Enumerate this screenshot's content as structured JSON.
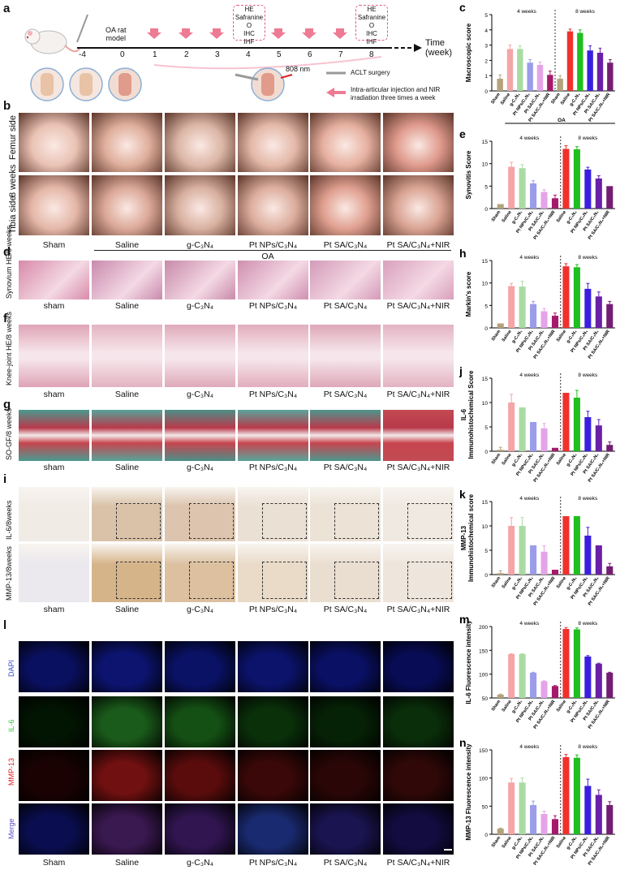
{
  "panel_a": {
    "letter": "a",
    "model_label": "OA rat\nmodel",
    "timeline_ticks": [
      "-4",
      "0",
      "1",
      "2",
      "3",
      "4",
      "5",
      "6",
      "7",
      "8"
    ],
    "time_label": "Time\n(week)",
    "assay_box_week4": [
      "HE",
      "Safranine O",
      "IHC",
      "IHF"
    ],
    "assay_box_week8": [
      "HE",
      "Safranine O",
      "IHC",
      "IHF"
    ],
    "laser_label": "808 nm",
    "legend_surgery": "ACLT surgery",
    "legend_injection": "Intra-articular injection and NIR\nirradiation three times a week"
  },
  "panel_b": {
    "letter": "b",
    "row_labels": [
      "Femur side",
      "Tibia side"
    ],
    "time_label": "8 weeks"
  },
  "group_labels": [
    "Sham",
    "Saline",
    "g-C₃N₄",
    "Pt NPs/C₃N₄",
    "Pt SA/C₃N₄",
    "Pt SA/C₃N₄+NIR"
  ],
  "group_labels_lower": [
    "sham",
    "Saline",
    "g-C₃N₄",
    "Pt NPs/C₃N₄",
    "Pt SA/C₃N₄",
    "Pt SA/C₃N₄+NIR"
  ],
  "oa_label": "OA",
  "panel_d": {
    "letter": "d",
    "row_label": "Synovium HE/8 weeks"
  },
  "panel_f": {
    "letter": "f",
    "row_label": "Knee-joint HE/8 weeks"
  },
  "panel_g": {
    "letter": "g",
    "row_label": "SO-GF/8 weeks"
  },
  "panel_i": {
    "letter": "i",
    "row_labels": [
      "IL-6/8weeks",
      "MMP-13/8weeks"
    ]
  },
  "panel_l": {
    "letter": "l",
    "row_labels": [
      "DAPI",
      "IL-6",
      "MMP-13",
      "Merge"
    ],
    "row_colors": [
      "#3a4fd0",
      "#3fbf3f",
      "#e02020",
      "#5a4fd0"
    ]
  },
  "tile_colors": {
    "femur": [
      "#e9c2b4",
      "#dfae9c",
      "#dcb6a6",
      "#e3b8a8",
      "#e6b0a0",
      "#df9a8c"
    ],
    "tibia": [
      "#e4b7a8",
      "#dba898",
      "#d8b0a0",
      "#dcae9e",
      "#e0a090",
      "#d9a393"
    ],
    "synovium": [
      "#d88aa8",
      "#c98aae",
      "#c88aa9",
      "#cf8fb0",
      "#d49ab8",
      "#d9a0bc"
    ],
    "knee": [
      "#dfa3b6",
      "#e3b3c1",
      "#dfa9ba",
      "#e2adbd",
      "#dea7b8",
      "#e3b3c2"
    ],
    "so": [
      "#4a9a90",
      "#57a39a",
      "#4c8f88",
      "#5aa59c",
      "#4e968e",
      "#c24a52"
    ],
    "il6": [
      "#f1ebe6",
      "#d9c2a8",
      "#dcc4ae",
      "#ebe0d4",
      "#ece2d6",
      "#f0e9e2"
    ],
    "mmp13": [
      "#ebe8ee",
      "#d6b48a",
      "#dcc0a0",
      "#e9dbc8",
      "#eaded0",
      "#eee6dc"
    ],
    "dapi": [
      "#0a1060",
      "#0c1470",
      "#0a1266",
      "#0b136a",
      "#0a1064",
      "#080c55"
    ],
    "il6f": [
      "#021402",
      "#1a5a1a",
      "#145014",
      "#0a300a",
      "#062206",
      "#0a2e0a"
    ],
    "mmp13f": [
      "#1a0202",
      "#701010",
      "#5a0c0c",
      "#3a0808",
      "#2a0606",
      "#300808"
    ],
    "merge": [
      "#0a0e50",
      "#3a1850",
      "#301550",
      "#1a2a70",
      "#1a1450",
      "#120c40"
    ]
  },
  "bar_colors": [
    "#b5a27c",
    "#f4a5a8",
    "#a9dca4",
    "#9b9cea",
    "#e4a4e8",
    "#a6196a",
    "#b5a27c",
    "#f0312e",
    "#1fbf1f",
    "#3a1fe0",
    "#6a1fa8",
    "#741e73"
  ],
  "charts": [
    {
      "letter": "c",
      "ylabel": "Macroscopic score",
      "ylim": [
        0,
        5
      ],
      "yticks": [
        0,
        1,
        2,
        3,
        4,
        5
      ],
      "week_labels": [
        "4 weeks",
        "8 weeks"
      ],
      "categories": [
        "Sham",
        "Saline",
        "g-C₃N₄",
        "Pt NPs/C₃N₄",
        "Pt SA/C₃N₄",
        "Pt SA/C₃N₄+NIR",
        "Sham",
        "Saline",
        "g-C₃N₄",
        "Pt NPs/C₃N₄",
        "Pt SA/C₃N₄",
        "Pt SA/C₃N₄+NIR"
      ],
      "values": [
        0.8,
        2.75,
        2.75,
        1.85,
        1.7,
        1.05,
        0.8,
        3.9,
        3.8,
        2.65,
        2.5,
        1.85
      ],
      "errors": [
        0.25,
        0.25,
        0.2,
        0.2,
        0.2,
        0.25,
        0.2,
        0.15,
        0.2,
        0.3,
        0.3,
        0.2
      ],
      "oa_label": "OA"
    },
    {
      "letter": "e",
      "ylabel": "Synovitis Score",
      "ylim": [
        0,
        15
      ],
      "yticks": [
        0,
        5,
        10,
        15
      ],
      "week_labels": [
        "4 weeks",
        "8 weeks"
      ],
      "categories": [
        "Sham",
        "Saline",
        "g-C₃N₄",
        "Pt NPs/C₃N₄",
        "Pt SA/C₃N₄",
        "Pt SA/C₃N₄+NIR",
        "Saline",
        "g-C₃N₄",
        "Pt NPs/C₃N₄",
        "Pt SA/C₃N₄",
        "Pt SA/C₃N₄+NIR"
      ],
      "values": [
        1,
        9.3,
        9,
        5.6,
        3.7,
        2.3,
        13.3,
        13.2,
        8.7,
        6.7,
        5
      ],
      "errors": [
        0,
        1,
        0.8,
        0.6,
        0.5,
        0.7,
        0.7,
        0.6,
        0.5,
        0.6,
        0
      ]
    },
    {
      "letter": "h",
      "ylabel": "Markin's score",
      "ylim": [
        0,
        15
      ],
      "yticks": [
        0,
        5,
        10,
        15
      ],
      "week_labels": [
        "4 weeks",
        "8 weeks"
      ],
      "categories": [
        "Sham",
        "Saline",
        "g-C₃N₄",
        "Pt NPs/C₃N₄",
        "Pt SA/C₃N₄",
        "Pt SA/C₃N₄+NIR",
        "Saline",
        "g-C₃N₄",
        "Pt NPs/C₃N₄",
        "Pt SA/C₃N₄",
        "Pt SA/C₃N₄+NIR"
      ],
      "values": [
        1,
        9.3,
        9.2,
        5.3,
        3.7,
        2.7,
        13.7,
        13.5,
        8.7,
        7,
        5.3
      ],
      "errors": [
        0,
        0.6,
        1.2,
        0.6,
        0.6,
        0.6,
        0.6,
        0.6,
        1.2,
        1.0,
        0.6
      ]
    },
    {
      "letter": "j",
      "ylabel": "IL-6\nImmunohistochemical Score",
      "ylim": [
        0,
        15
      ],
      "yticks": [
        0,
        5,
        10,
        15
      ],
      "week_labels": [
        "4 weeks",
        "8 weeks"
      ],
      "categories": [
        "Sham",
        "Saline",
        "g-C₃N₄",
        "Pt NPs/C₃N₄",
        "Pt SA/C₃N₄",
        "Pt SA/C₃N₄+NIR",
        "Saline",
        "g-C₃N₄",
        "Pt NPs/C₃N₄",
        "Pt SA/C₃N₄",
        "Pt SA/C₃N₄+NIR"
      ],
      "values": [
        0.3,
        10,
        9,
        6,
        4.7,
        0.7,
        12,
        11,
        7,
        5.3,
        1.3
      ],
      "errors": [
        0.5,
        1.7,
        0,
        0,
        1,
        0,
        0,
        1.5,
        1.2,
        1.2,
        0.6
      ]
    },
    {
      "letter": "k",
      "ylabel": "MMP-13\nImmunohistochemical score",
      "ylim": [
        0,
        15
      ],
      "yticks": [
        0,
        5,
        10,
        15
      ],
      "week_labels": [
        "4 weeks",
        "8 weeks"
      ],
      "categories": [
        "Sham",
        "Saline",
        "g-C₃N₄",
        "Pt NPs/C₃N₄",
        "Pt SA/C₃N₄",
        "Pt SA/C₃N₄+NIR",
        "Saline",
        "g-C₃N₄",
        "Pt NPs/C₃N₄",
        "Pt SA/C₃N₄",
        "Pt SA/C₃N₄+NIR"
      ],
      "values": [
        0.3,
        10,
        10,
        6,
        4.7,
        1,
        12,
        12,
        8,
        6,
        1.7
      ],
      "errors": [
        0.5,
        1.7,
        1.7,
        0,
        1.2,
        0,
        0,
        0,
        1.7,
        0,
        0.6
      ]
    },
    {
      "letter": "m",
      "ylabel": "IL-6 Fluorescence intensity",
      "ylim": [
        50,
        200
      ],
      "yticks": [
        50,
        100,
        150,
        200
      ],
      "week_labels": [
        "4 weeks",
        "8 weeks"
      ],
      "categories": [
        "Sham",
        "Saline",
        "g-C₃N₄",
        "Pt NPs/C₃N₄",
        "Pt SA/C₃N₄",
        "Pt SA/C₃N₄+NIR",
        "Saline",
        "g-C₃N₄",
        "Pt NPs/C₃N₄",
        "Pt SA/C₃N₄",
        "Pt SA/C₃N₄+NIR"
      ],
      "values": [
        57,
        142,
        142,
        103,
        85,
        75,
        195,
        194,
        137,
        122,
        103
      ],
      "errors": [
        1,
        1,
        1,
        1,
        1,
        1,
        3,
        3,
        2,
        1,
        1
      ]
    },
    {
      "letter": "n",
      "ylabel": "MMP-13 Fluorescence intensity",
      "ylim": [
        0,
        150
      ],
      "yticks": [
        0,
        50,
        100,
        150
      ],
      "week_labels": [
        "4 weeks",
        "8 weeks"
      ],
      "categories": [
        "Sham",
        "Saline",
        "g-C₃N₄",
        "Pt NPs/C₃N₄",
        "Pt SA/C₃N₄",
        "Pt SA/C₃N₄+NIR",
        "Saline",
        "g-C₃N₄",
        "Pt NPs/C₃N₄",
        "Pt SA/C₃N₄",
        "Pt SA/C₃N₄+NIR"
      ],
      "values": [
        10,
        92,
        92,
        52,
        36,
        27,
        137,
        136,
        86,
        70,
        52
      ],
      "errors": [
        1,
        7,
        8,
        7,
        5,
        6,
        5,
        5,
        12,
        9,
        6
      ]
    }
  ]
}
